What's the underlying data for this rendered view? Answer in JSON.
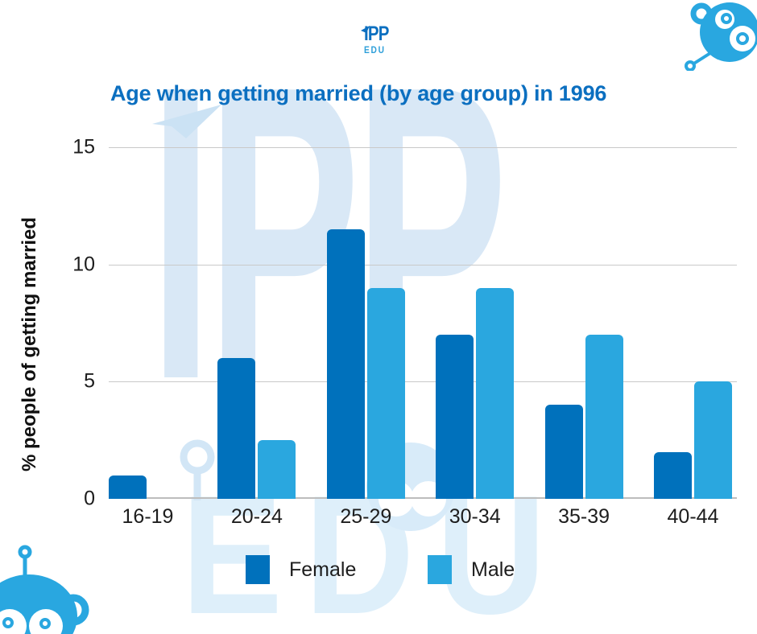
{
  "brand": {
    "logo_primary": "IPP",
    "logo_secondary": "EDU",
    "accent_dark": "#0B6FC0",
    "accent_light": "#29A7E0",
    "watermark_color": "#D9E8F6"
  },
  "icons": {
    "logo_flag": "paper-plane-icon",
    "top_right": "monkey-robot-icon",
    "bottom_left": "monkey-robot-icon"
  },
  "chart_data": {
    "type": "bar",
    "title": "Age when getting married (by age group) in 1996",
    "title_color": "#0B6FC0",
    "categories": [
      "16-19",
      "20-24",
      "25-29",
      "30-34",
      "35-39",
      "40-44"
    ],
    "series": [
      {
        "name": "Female",
        "color": "#0071BC",
        "values": [
          1,
          6,
          11.5,
          7,
          4,
          2
        ]
      },
      {
        "name": "Male",
        "color": "#2AA7DF",
        "values": [
          0,
          2.5,
          9,
          9,
          7,
          5
        ]
      }
    ],
    "xlabel": "",
    "ylabel": "% people of getting married",
    "ylim": [
      0,
      15
    ],
    "yticks": [
      0,
      5,
      10,
      15
    ],
    "grid": true,
    "legend_position": "bottom"
  }
}
